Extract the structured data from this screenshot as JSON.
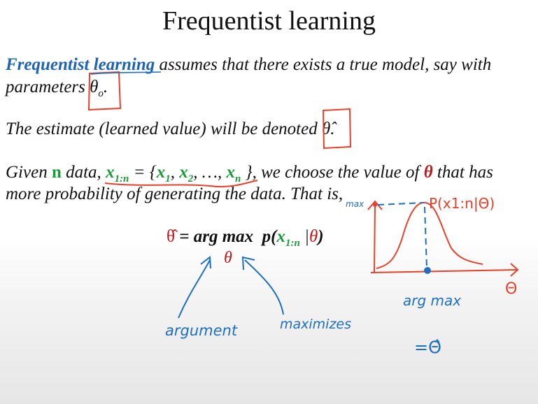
{
  "title": "Frequentist learning",
  "para1": {
    "term": "Frequentist learning",
    "text_a": " assumes that there exists a true model, say with",
    "text_b": "parameters ",
    "theta": "θ",
    "theta_sub": "o",
    "period": "."
  },
  "para2": {
    "text": "The estimate (learned value) will be denoted ",
    "theta_hat": "θ̂",
    "period": "."
  },
  "para3": {
    "given": "Given ",
    "n": "n",
    "data_txt": " data, ",
    "x": "x",
    "sub_1n": "1:n",
    "eq_brace": " = {",
    "x1": "x",
    "s1": "1",
    "comma1": ", ",
    "x2": "x",
    "s2": "2",
    "dots": ", …, ",
    "xn": "x",
    "sn": "n",
    "close": " }, we choose the value of ",
    "theta": "θ",
    "tail": " that has",
    "line2": "more probability of generating the data. That is,"
  },
  "equation": {
    "theta_hat": "θ̂",
    "eq": " = ",
    "argmax": "arg max",
    "p_open": "p(",
    "x": "x",
    "sub": "1:n",
    "given": " |",
    "theta": "θ",
    "close": ")",
    "under_theta": "θ"
  },
  "annotations": {
    "argument": "argument",
    "maximizes": "maximizes",
    "argmax_label": "arg max",
    "equals_theta_hat": "=Θ̂",
    "max_label": "max",
    "curve_label": "P(x1:n|Θ)",
    "axis_label": "Θ"
  },
  "colors": {
    "blue": "#1f63b3",
    "green": "#1a9a3a",
    "red": "#c01818",
    "ink_red": "#e8402a",
    "ink_blue": "#1e6fc0"
  }
}
